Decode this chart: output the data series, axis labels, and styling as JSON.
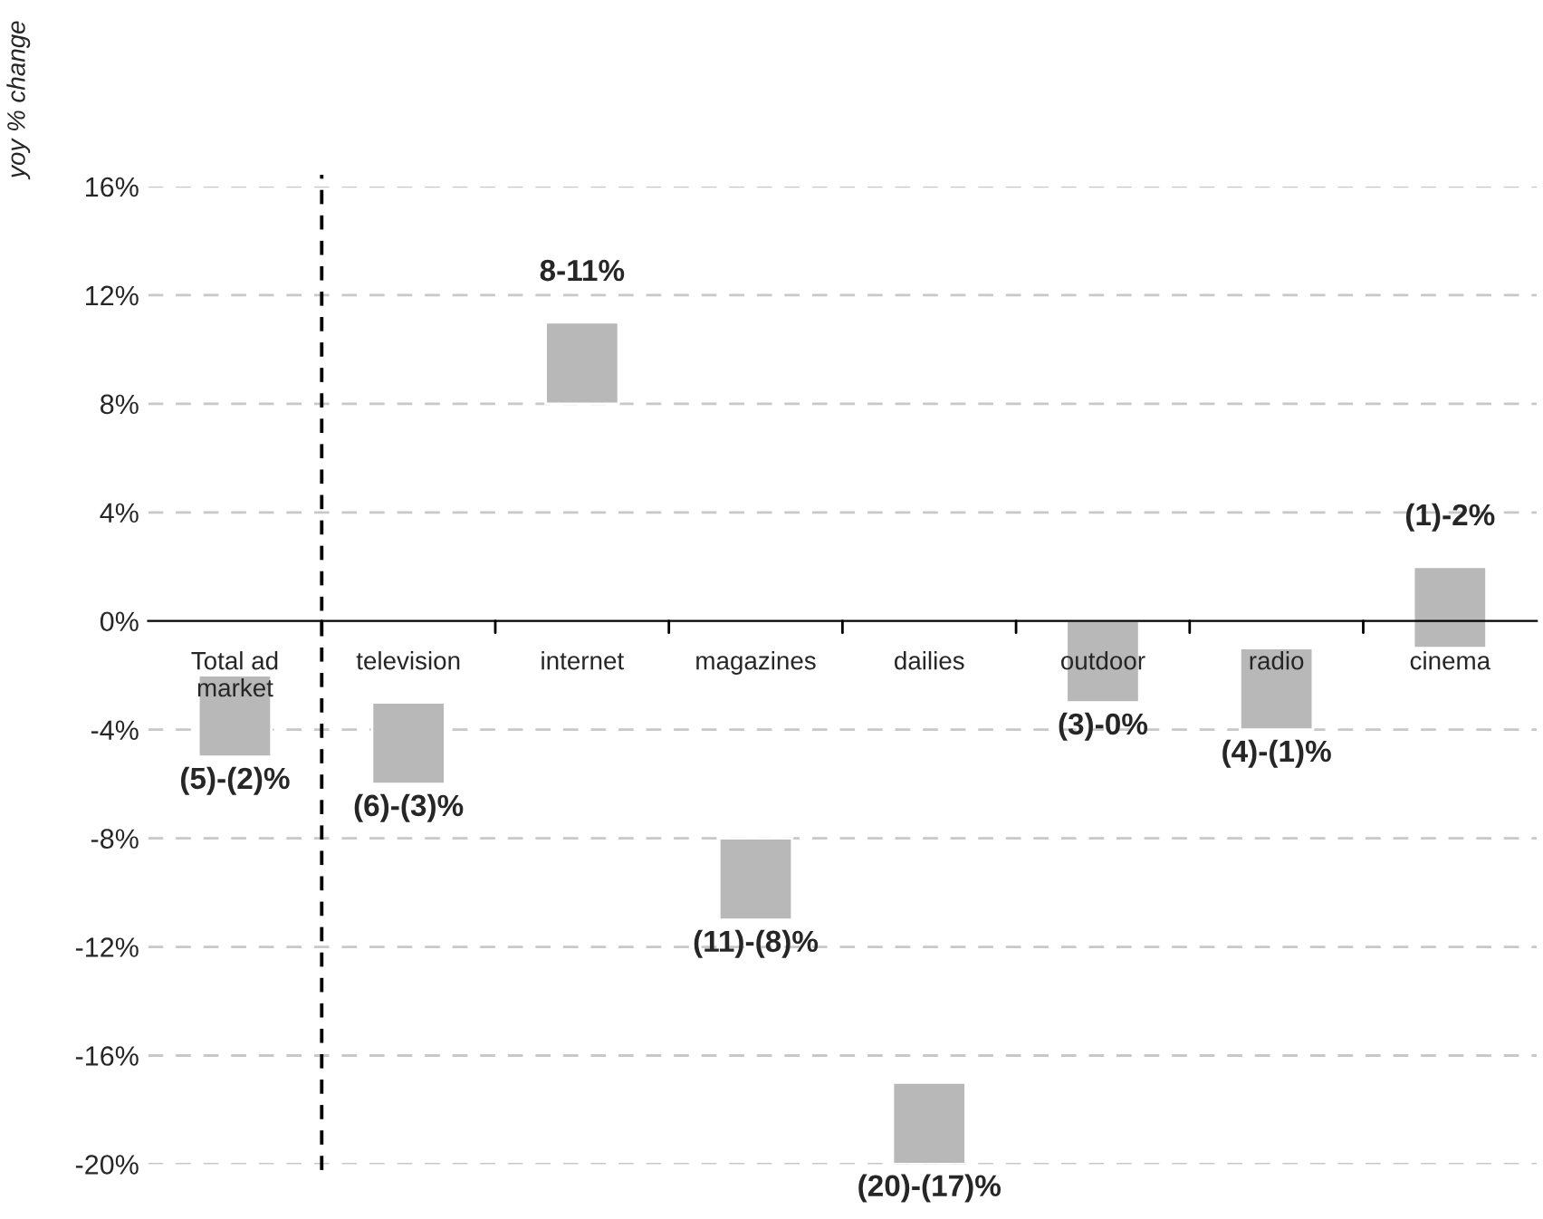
{
  "chart_data": {
    "type": "bar",
    "ylabel": "yoy % change",
    "categories": [
      "Total ad market",
      "television",
      "internet",
      "magazines",
      "dailies",
      "outdoor",
      "radio",
      "cinema"
    ],
    "base": [
      -5,
      -6,
      8,
      -11,
      -20,
      -3,
      -4,
      -1
    ],
    "values": [
      3,
      3,
      3,
      3,
      3,
      3,
      3,
      3
    ],
    "annotations": [
      {
        "text": "(5)-(2)%",
        "x": "Total ad market",
        "y": -5
      },
      {
        "text": "(6)-(3)%",
        "x": "television",
        "y": -6
      },
      {
        "text": "8-11%",
        "x": "internet",
        "y": 11
      },
      {
        "text": "(11)-(8)%",
        "x": "magazines",
        "y": -11
      },
      {
        "text": "(20)-(17)%",
        "x": "dailies",
        "y": -20
      },
      {
        "text": "(3)-0%",
        "x": "outdoor",
        "y": -3
      },
      {
        "text": "(4)-(1)%",
        "x": "radio",
        "y": -4
      },
      {
        "text": "(1)-2%",
        "x": "cinema",
        "y": 2
      }
    ],
    "color": "#b8b8b8",
    "ylim": [
      -20,
      16
    ],
    "yticks": [
      {
        "value": -20,
        "label": "-20%"
      },
      {
        "value": -16,
        "label": "-16%"
      },
      {
        "value": -12,
        "label": "-12%"
      },
      {
        "value": -8,
        "label": "-8%"
      },
      {
        "value": -4,
        "label": "-4%"
      },
      {
        "value": 0,
        "label": "0%"
      },
      {
        "value": 4,
        "label": "4%"
      },
      {
        "value": 8,
        "label": "8%"
      },
      {
        "value": 12,
        "label": "12%"
      },
      {
        "value": 16,
        "label": "16%"
      }
    ],
    "grid": "y"
  }
}
